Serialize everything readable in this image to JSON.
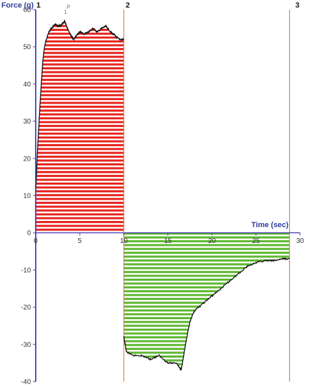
{
  "chart_data": {
    "type": "area",
    "ylabel": "Force (g)",
    "xlabel": "Time (sec)",
    "xlim": [
      0,
      30
    ],
    "ylim": [
      -40,
      60
    ],
    "x_ticks": [
      "0",
      "5",
      "10",
      "15",
      "20",
      "25",
      "30"
    ],
    "y_ticks": [
      "60",
      "50",
      "40",
      "30",
      "20",
      "10",
      "0",
      "-10",
      "-20",
      "-30",
      "-40"
    ],
    "markers": [
      {
        "label": "1",
        "x": 0
      },
      {
        "label": "2",
        "x": 10
      },
      {
        "label": "3",
        "x": 28.8
      }
    ],
    "peak_annotation": {
      "label": "P",
      "sublabel": "1",
      "x": 3.3,
      "y": 57
    },
    "fill_positive_color": "#e8251f",
    "fill_negative_color": "#5fb832",
    "axis_color": "#4a3fb0",
    "marker_color": "#e87a5a",
    "series": [
      {
        "x": [
          0,
          0.2,
          0.5,
          0.8,
          1.0,
          1.2,
          1.5,
          1.8,
          2.2,
          2.6,
          3.0,
          3.3,
          3.6,
          4.0,
          4.3,
          4.6,
          5.0,
          5.5,
          6.0,
          6.5,
          7.0,
          7.5,
          8.0,
          8.5,
          9.0,
          9.5,
          10.0
        ],
        "y": [
          10,
          22,
          35,
          46,
          50,
          52,
          54,
          55,
          56,
          55.5,
          56,
          57,
          55,
          53,
          52,
          53,
          54,
          53.5,
          54,
          55,
          54,
          55,
          55.5,
          54,
          53,
          52,
          52
        ]
      },
      {
        "x": [
          10.0,
          10.3,
          11.0,
          12.0,
          13.0,
          14.0,
          15.0,
          16.0,
          16.5,
          17.0,
          17.5,
          18.0,
          19.0,
          20.0,
          21.0,
          22.0,
          23.0,
          24.0,
          25.0,
          26.0,
          27.0,
          28.0,
          28.8
        ],
        "y": [
          -28,
          -32,
          -33,
          -33,
          -34,
          -33,
          -35,
          -35,
          -37,
          -30,
          -24,
          -21,
          -19,
          -17,
          -15,
          -13,
          -11,
          -9,
          -8,
          -7.5,
          -7.5,
          -7,
          -7
        ]
      }
    ]
  }
}
